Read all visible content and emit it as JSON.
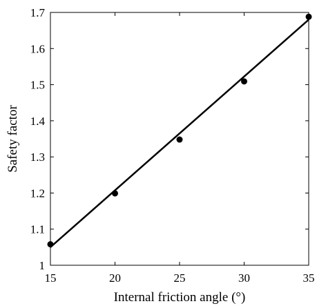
{
  "chart_data": {
    "type": "scatter",
    "title": "",
    "xlabel": "Internal friction angle (°)",
    "ylabel": "Safety factor",
    "xlim": [
      15,
      35
    ],
    "ylim": [
      1,
      1.7
    ],
    "xticks": [
      "15",
      "20",
      "25",
      "30",
      "35"
    ],
    "yticks": [
      "1",
      "1.1",
      "1.2",
      "1.3",
      "1.4",
      "1.5",
      "1.6",
      "1.7"
    ],
    "grid": false,
    "series": [
      {
        "type": "scatter",
        "x": [
          15,
          20,
          25,
          30,
          35
        ],
        "y": [
          1.058,
          1.199,
          1.348,
          1.509,
          1.688
        ]
      },
      {
        "type": "line",
        "x": [
          15,
          35
        ],
        "y": [
          1.05,
          1.68
        ]
      }
    ],
    "colors": {
      "marker": "#000000",
      "line": "#000000",
      "axis": "#000000"
    }
  }
}
